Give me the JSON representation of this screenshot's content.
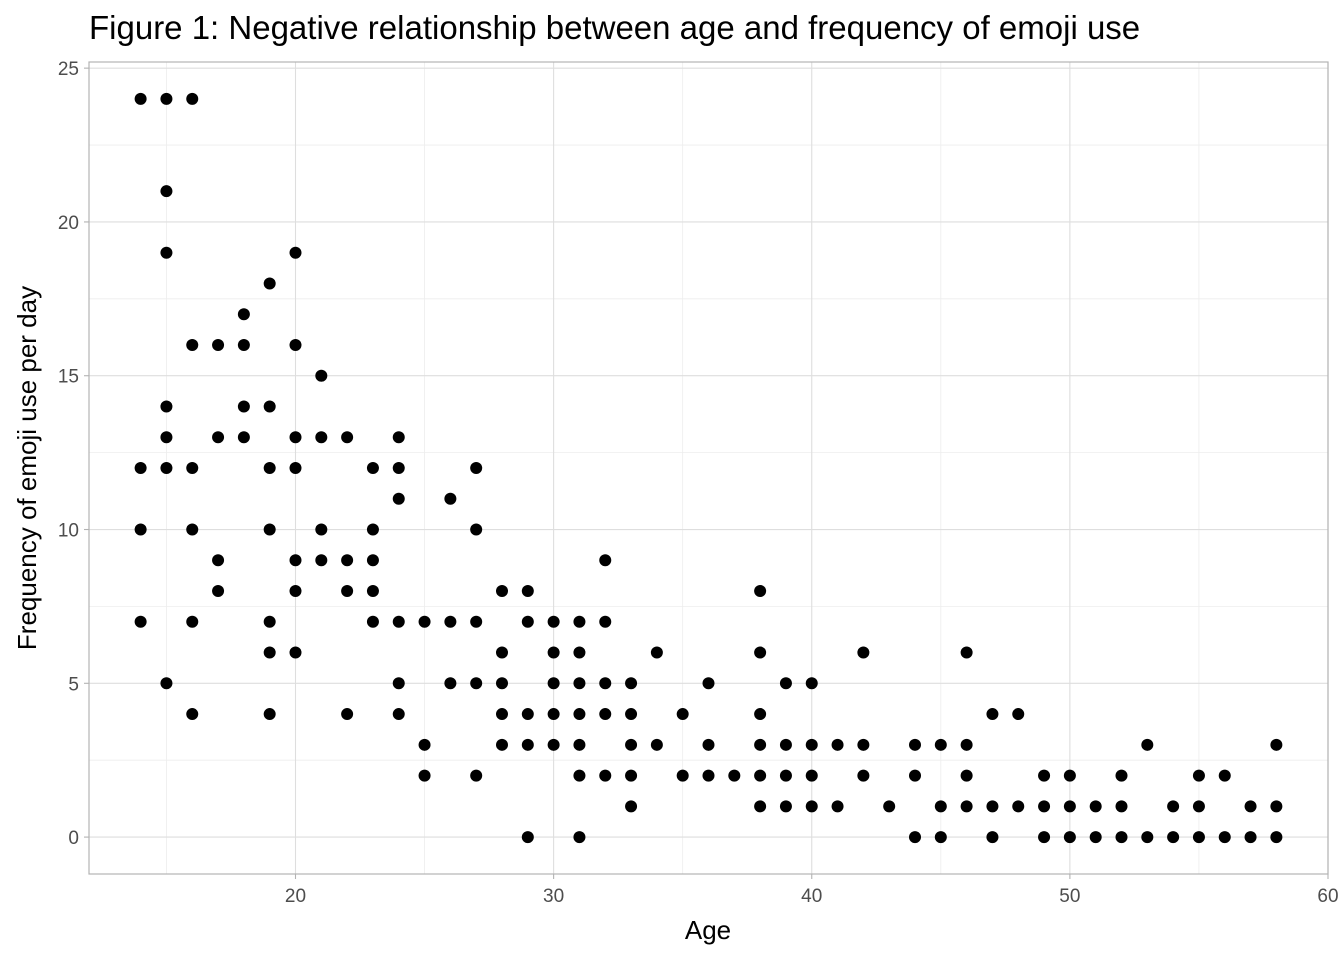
{
  "chart_data": {
    "type": "scatter",
    "title": "Figure 1: Negative relationship between age and frequency of emoji use",
    "xlabel": "Age",
    "ylabel": "Frequency of emoji use per day",
    "xlim": [
      12,
      60
    ],
    "ylim": [
      -1.2,
      25.2
    ],
    "x_ticks": [
      20,
      30,
      40,
      50,
      60
    ],
    "y_ticks": [
      0,
      5,
      10,
      15,
      20,
      25
    ],
    "x_tick_labels": [
      "20",
      "30",
      "40",
      "50",
      "60"
    ],
    "y_tick_labels": [
      "0",
      "5",
      "10",
      "15",
      "20",
      "25"
    ],
    "grid": true,
    "legend": "none",
    "point_color": "#000000",
    "points": [
      [
        14,
        24
      ],
      [
        15,
        24
      ],
      [
        16,
        24
      ],
      [
        15,
        21
      ],
      [
        15,
        19
      ],
      [
        14,
        12
      ],
      [
        14,
        10
      ],
      [
        14,
        7
      ],
      [
        15,
        14
      ],
      [
        15,
        13
      ],
      [
        15,
        12
      ],
      [
        15,
        5
      ],
      [
        16,
        16
      ],
      [
        16,
        12
      ],
      [
        16,
        10
      ],
      [
        16,
        7
      ],
      [
        16,
        4
      ],
      [
        17,
        16
      ],
      [
        17,
        13
      ],
      [
        17,
        9
      ],
      [
        17,
        8
      ],
      [
        18,
        17
      ],
      [
        18,
        16
      ],
      [
        18,
        14
      ],
      [
        18,
        13
      ],
      [
        19,
        18
      ],
      [
        19,
        14
      ],
      [
        19,
        12
      ],
      [
        19,
        10
      ],
      [
        19,
        7
      ],
      [
        19,
        6
      ],
      [
        19,
        4
      ],
      [
        20,
        19
      ],
      [
        20,
        16
      ],
      [
        20,
        13
      ],
      [
        20,
        12
      ],
      [
        20,
        9
      ],
      [
        20,
        8
      ],
      [
        20,
        6
      ],
      [
        21,
        15
      ],
      [
        21,
        13
      ],
      [
        21,
        10
      ],
      [
        21,
        9
      ],
      [
        22,
        13
      ],
      [
        22,
        9
      ],
      [
        22,
        8
      ],
      [
        22,
        4
      ],
      [
        23,
        12
      ],
      [
        23,
        10
      ],
      [
        23,
        9
      ],
      [
        23,
        8
      ],
      [
        23,
        7
      ],
      [
        24,
        13
      ],
      [
        24,
        12
      ],
      [
        24,
        11
      ],
      [
        24,
        7
      ],
      [
        24,
        5
      ],
      [
        24,
        4
      ],
      [
        25,
        7
      ],
      [
        25,
        3
      ],
      [
        25,
        2
      ],
      [
        26,
        11
      ],
      [
        26,
        7
      ],
      [
        26,
        5
      ],
      [
        27,
        12
      ],
      [
        27,
        10
      ],
      [
        27,
        7
      ],
      [
        27,
        5
      ],
      [
        27,
        2
      ],
      [
        28,
        8
      ],
      [
        28,
        6
      ],
      [
        28,
        5
      ],
      [
        28,
        4
      ],
      [
        28,
        3
      ],
      [
        29,
        8
      ],
      [
        29,
        7
      ],
      [
        29,
        4
      ],
      [
        29,
        3
      ],
      [
        29,
        0
      ],
      [
        30,
        7
      ],
      [
        30,
        6
      ],
      [
        30,
        5
      ],
      [
        30,
        4
      ],
      [
        30,
        3
      ],
      [
        31,
        7
      ],
      [
        31,
        6
      ],
      [
        31,
        5
      ],
      [
        31,
        4
      ],
      [
        31,
        3
      ],
      [
        31,
        2
      ],
      [
        31,
        0
      ],
      [
        32,
        9
      ],
      [
        32,
        7
      ],
      [
        32,
        5
      ],
      [
        32,
        4
      ],
      [
        32,
        2
      ],
      [
        33,
        5
      ],
      [
        33,
        4
      ],
      [
        33,
        3
      ],
      [
        33,
        2
      ],
      [
        33,
        1
      ],
      [
        34,
        6
      ],
      [
        34,
        3
      ],
      [
        35,
        4
      ],
      [
        35,
        2
      ],
      [
        36,
        5
      ],
      [
        36,
        3
      ],
      [
        36,
        2
      ],
      [
        37,
        2
      ],
      [
        38,
        8
      ],
      [
        38,
        6
      ],
      [
        38,
        4
      ],
      [
        38,
        3
      ],
      [
        38,
        2
      ],
      [
        38,
        1
      ],
      [
        39,
        5
      ],
      [
        39,
        3
      ],
      [
        39,
        2
      ],
      [
        39,
        1
      ],
      [
        40,
        5
      ],
      [
        40,
        3
      ],
      [
        40,
        2
      ],
      [
        40,
        1
      ],
      [
        41,
        3
      ],
      [
        41,
        1
      ],
      [
        42,
        6
      ],
      [
        42,
        3
      ],
      [
        42,
        2
      ],
      [
        43,
        1
      ],
      [
        44,
        3
      ],
      [
        44,
        2
      ],
      [
        44,
        0
      ],
      [
        45,
        3
      ],
      [
        45,
        1
      ],
      [
        45,
        0
      ],
      [
        46,
        6
      ],
      [
        46,
        3
      ],
      [
        46,
        2
      ],
      [
        46,
        1
      ],
      [
        47,
        4
      ],
      [
        47,
        1
      ],
      [
        47,
        0
      ],
      [
        48,
        4
      ],
      [
        48,
        1
      ],
      [
        49,
        2
      ],
      [
        49,
        1
      ],
      [
        49,
        0
      ],
      [
        50,
        2
      ],
      [
        50,
        1
      ],
      [
        50,
        0
      ],
      [
        51,
        1
      ],
      [
        51,
        0
      ],
      [
        52,
        2
      ],
      [
        52,
        1
      ],
      [
        52,
        0
      ],
      [
        53,
        3
      ],
      [
        53,
        0
      ],
      [
        54,
        1
      ],
      [
        54,
        0
      ],
      [
        55,
        2
      ],
      [
        55,
        1
      ],
      [
        55,
        0
      ],
      [
        56,
        2
      ],
      [
        56,
        0
      ],
      [
        57,
        1
      ],
      [
        57,
        0
      ],
      [
        58,
        3
      ],
      [
        58,
        1
      ],
      [
        58,
        0
      ]
    ]
  }
}
